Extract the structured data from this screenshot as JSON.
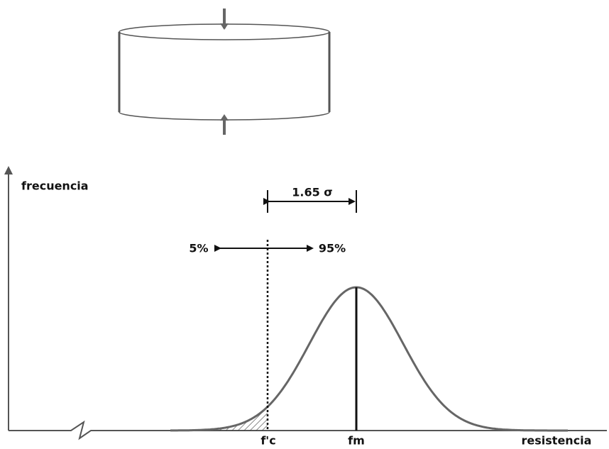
{
  "labels": {
    "y_axis": "frecuencia",
    "sigma": "1.65 σ",
    "left_pct": "5%",
    "right_pct": "95%",
    "fc": "f'c",
    "fm": "fm",
    "x_axis": "resistencia"
  }
}
